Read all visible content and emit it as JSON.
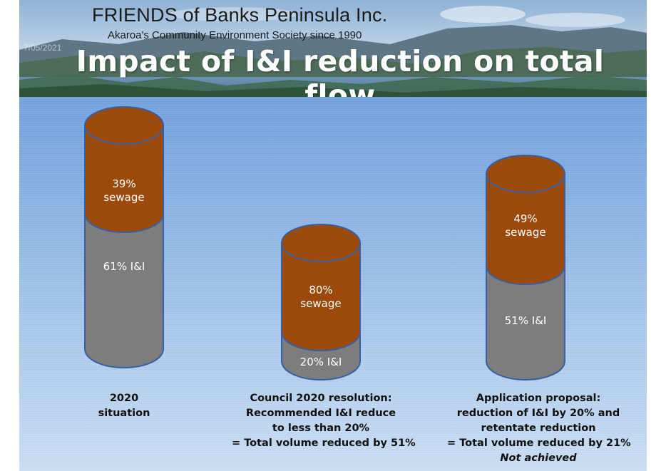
{
  "header": {
    "org_title": "FRIENDS of Banks Peninsula Inc.",
    "org_subtitle": "Akaroa's Community Environment Society since 1990",
    "date_stamp": "7/05/2021",
    "title": "Impact of I&I reduction on total flow"
  },
  "colors": {
    "sewage": "#9b4a0b",
    "ii": "#7d7d7d",
    "outline": "#3a5fa0"
  },
  "scenarios": [
    {
      "sewage_label": [
        "39%",
        "sewage"
      ],
      "ii_label": "61%  I&I",
      "caption": [
        "2020",
        "situation"
      ],
      "note": ""
    },
    {
      "sewage_label": [
        "80%",
        "sewage"
      ],
      "ii_label": "20% I&I",
      "caption": [
        "Council 2020  resolution:",
        "Recommended I&I reduce",
        "to less than 20%",
        "= Total volume reduced by 51%"
      ],
      "note": ""
    },
    {
      "sewage_label": [
        "49%",
        "sewage"
      ],
      "ii_label": "51% I&I",
      "caption": [
        "Application proposal:",
        "reduction of I&I by 20% and",
        "retentate reduction",
        "= Total volume reduced by 21%"
      ],
      "note": "Not achieved"
    }
  ]
}
